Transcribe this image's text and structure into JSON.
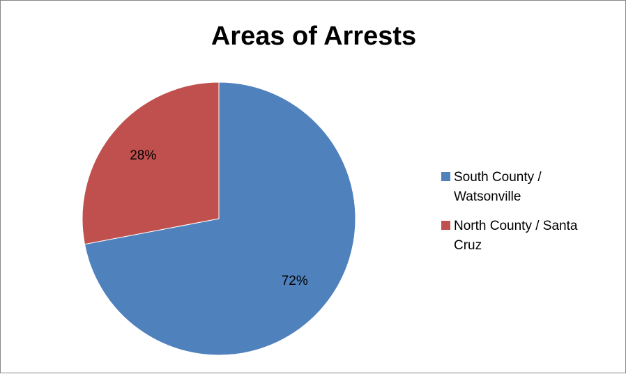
{
  "chart_data": {
    "type": "pie",
    "title": "Areas of Arrests",
    "slices": [
      {
        "label": "South County / Watsonville",
        "value": 72,
        "display": "72%",
        "color": "#4F81BD"
      },
      {
        "label": "North County / Santa Cruz",
        "value": 28,
        "display": "28%",
        "color": "#C0504D"
      }
    ],
    "legend_position": "right"
  },
  "legend": {
    "items": [
      {
        "label": "South County /\nWatsonville",
        "color": "#4F81BD"
      },
      {
        "label": "North County / Santa\nCruz",
        "color": "#C0504D"
      }
    ]
  }
}
